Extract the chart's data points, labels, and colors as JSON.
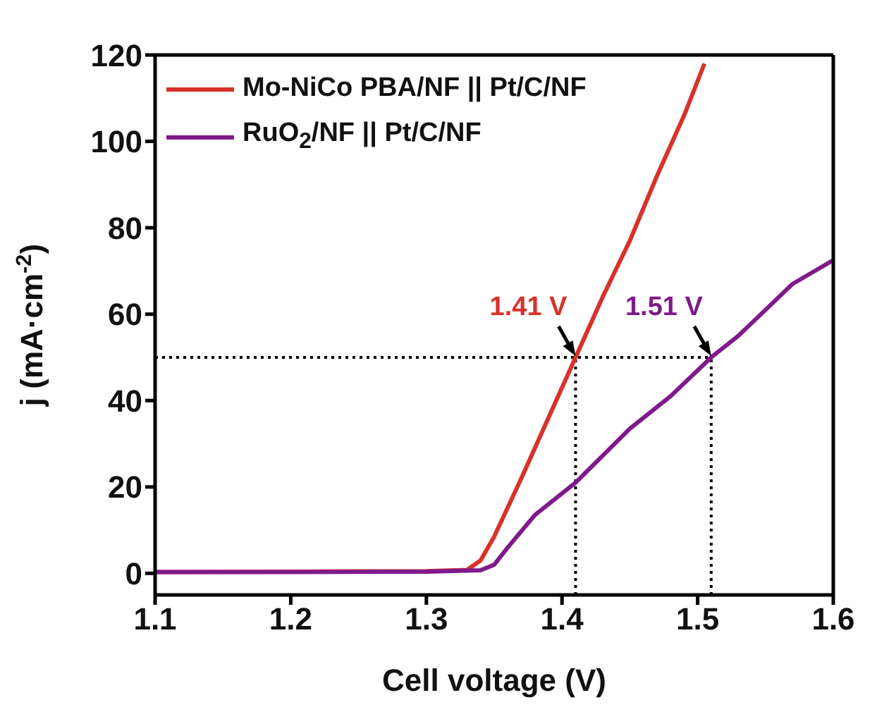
{
  "chart_data": {
    "type": "line",
    "xlabel": "Cell voltage (V)",
    "ylabel": "j (mA·cm$^{-2}$)",
    "xlim": [
      1.1,
      1.6
    ],
    "xticks": [
      1.1,
      1.2,
      1.3,
      1.4,
      1.5,
      1.6
    ],
    "ylim": [
      -5,
      120
    ],
    "yticks": [
      0,
      20,
      40,
      60,
      80,
      100,
      120
    ],
    "grid": false,
    "legend": "top left",
    "marker": "none",
    "line_style": "solid",
    "series": [
      {
        "name": "Mo-NiCo PBA/NF || Pt/C/NF",
        "color": "#d8322a",
        "x": [
          1.1,
          1.2,
          1.3,
          1.33,
          1.34,
          1.35,
          1.37,
          1.39,
          1.41,
          1.43,
          1.45,
          1.47,
          1.49,
          1.505
        ],
        "values": [
          0.3,
          0.4,
          0.5,
          0.8,
          3,
          8.5,
          22,
          36,
          50,
          64,
          77,
          92,
          106,
          118
        ]
      },
      {
        "name": "RuO$_{2}$/NF || Pt/C/NF",
        "color": "#7f1a8a",
        "x": [
          1.1,
          1.2,
          1.3,
          1.34,
          1.35,
          1.36,
          1.38,
          1.41,
          1.45,
          1.48,
          1.51,
          1.53,
          1.55,
          1.56,
          1.57,
          1.6
        ],
        "values": [
          0.3,
          0.3,
          0.4,
          0.7,
          2,
          6,
          13.5,
          21,
          33.5,
          41,
          50,
          55,
          61,
          64,
          67,
          72.5
        ]
      }
    ],
    "ref_lines": [
      {
        "axis": "y",
        "value": 50,
        "line_style": "dotted",
        "color": "#000000"
      },
      {
        "axis": "x",
        "value": 1.41,
        "line_style": "dotted",
        "color": "#000000"
      },
      {
        "axis": "x",
        "value": 1.51,
        "line_style": "dotted",
        "color": "#000000"
      }
    ],
    "annotations": [
      {
        "text": "1.41 V",
        "x": 1.41,
        "y": 50
      },
      {
        "text": "1.51 V",
        "x": 1.51,
        "y": 50
      }
    ]
  }
}
